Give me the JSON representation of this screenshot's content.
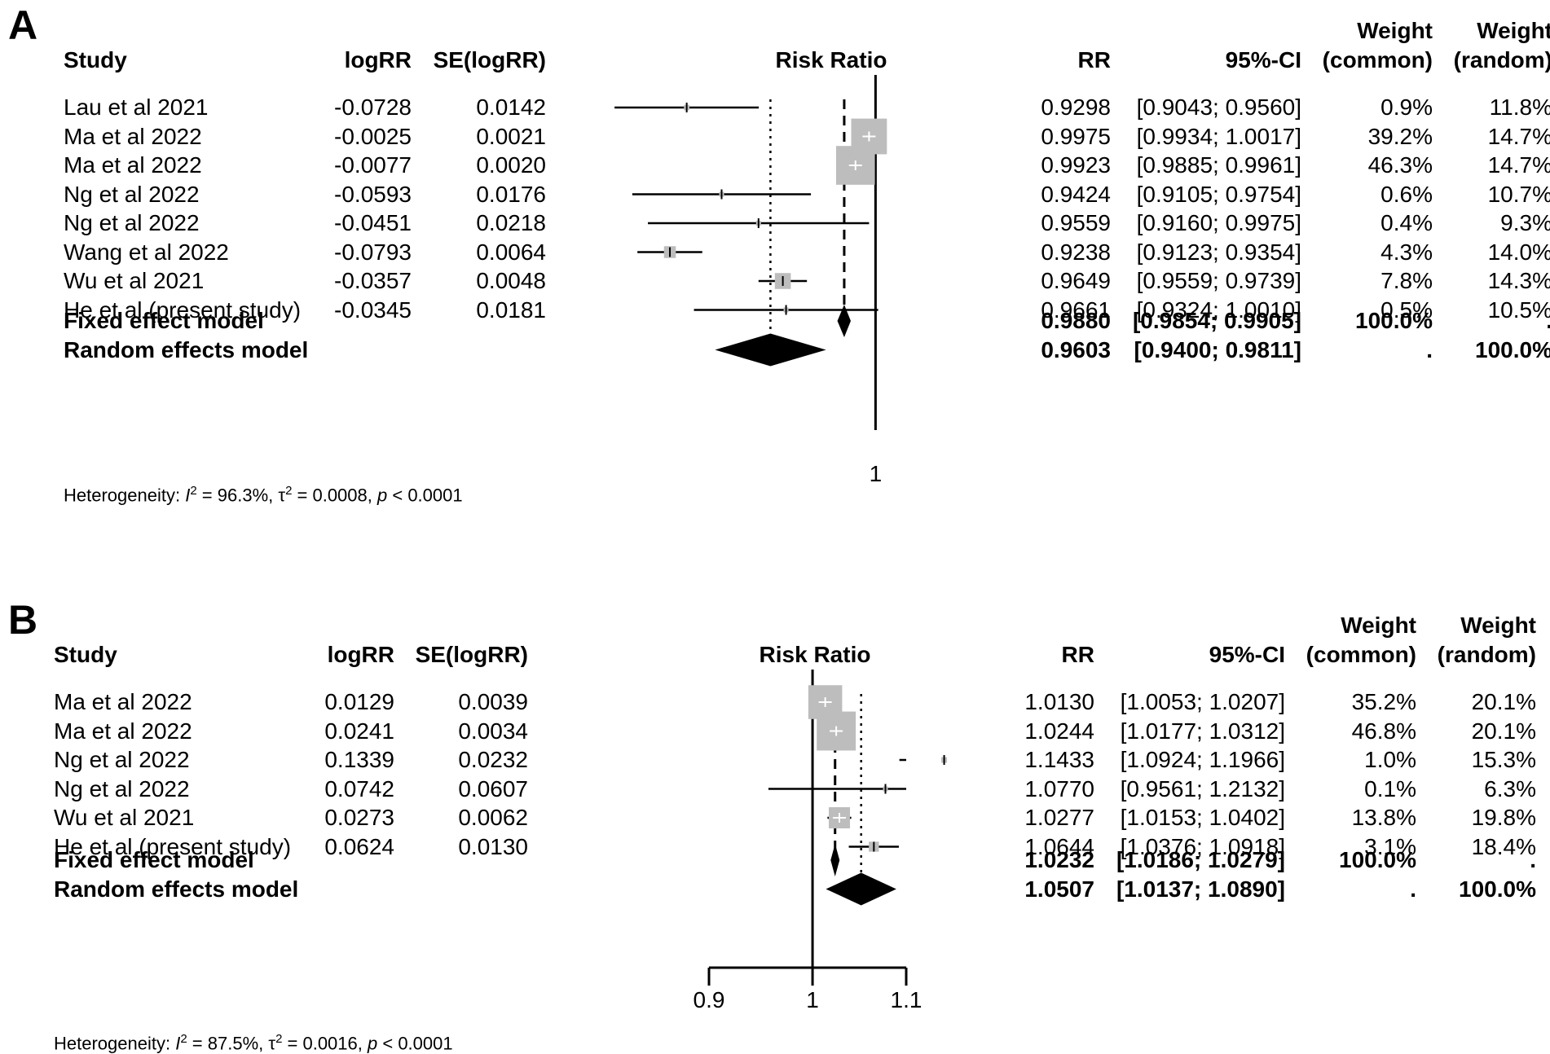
{
  "chart_data": [
    {
      "type": "forest",
      "panel_label": "A",
      "headers": {
        "study": "Study",
        "logrr": "logRR",
        "se": "SE(logRR)",
        "plot": "Risk Ratio",
        "rr": "RR",
        "ci": "95%-CI",
        "w_common_1": "Weight",
        "w_common_2": "(common)",
        "w_random_1": "Weight",
        "w_random_2": "(random)"
      },
      "rows": [
        {
          "study": "Lau et al 2021",
          "logrr": "-0.0728",
          "se": "0.0142",
          "rr": "0.9298",
          "ci": "[0.9043; 0.9560]",
          "w_common": "0.9%",
          "w_random": "11.8%",
          "est": 0.9298,
          "lo": 0.9043,
          "hi": 0.956,
          "wc": 0.9
        },
        {
          "study": "Ma et al 2022",
          "logrr": "-0.0025",
          "se": "0.0021",
          "rr": "0.9975",
          "ci": "[0.9934; 1.0017]",
          "w_common": "39.2%",
          "w_random": "14.7%",
          "est": 0.9975,
          "lo": 0.9934,
          "hi": 1.0017,
          "wc": 39.2
        },
        {
          "study": "Ma et al 2022",
          "logrr": "-0.0077",
          "se": "0.0020",
          "rr": "0.9923",
          "ci": "[0.9885; 0.9961]",
          "w_common": "46.3%",
          "w_random": "14.7%",
          "est": 0.9923,
          "lo": 0.9885,
          "hi": 0.9961,
          "wc": 46.3
        },
        {
          "study": "Ng et al 2022",
          "logrr": "-0.0593",
          "se": "0.0176",
          "rr": "0.9424",
          "ci": "[0.9105; 0.9754]",
          "w_common": "0.6%",
          "w_random": "10.7%",
          "est": 0.9424,
          "lo": 0.9105,
          "hi": 0.9754,
          "wc": 0.6
        },
        {
          "study": "Ng et al 2022",
          "logrr": "-0.0451",
          "se": "0.0218",
          "rr": "0.9559",
          "ci": "[0.9160; 0.9975]",
          "w_common": "0.4%",
          "w_random": "9.3%",
          "est": 0.9559,
          "lo": 0.916,
          "hi": 0.9975,
          "wc": 0.4
        },
        {
          "study": "Wang et al 2022",
          "logrr": "-0.0793",
          "se": "0.0064",
          "rr": "0.9238",
          "ci": "[0.9123; 0.9354]",
          "w_common": "4.3%",
          "w_random": "14.0%",
          "est": 0.9238,
          "lo": 0.9123,
          "hi": 0.9354,
          "wc": 4.3
        },
        {
          "study": "Wu et al 2021",
          "logrr": "-0.0357",
          "se": "0.0048",
          "rr": "0.9649",
          "ci": "[0.9559; 0.9739]",
          "w_common": "7.8%",
          "w_random": "14.3%",
          "est": 0.9649,
          "lo": 0.9559,
          "hi": 0.9739,
          "wc": 7.8
        },
        {
          "study": "He et al (present study)",
          "logrr": "-0.0345",
          "se": "0.0181",
          "rr": "0.9661",
          "ci": "[0.9324; 1.0010]",
          "w_common": "0.5%",
          "w_random": "10.5%",
          "est": 0.9661,
          "lo": 0.9324,
          "hi": 1.001,
          "wc": 0.5
        }
      ],
      "summary": [
        {
          "label": "Fixed effect model",
          "rr": "0.9880",
          "ci": "[0.9854; 0.9905]",
          "w_common": "100.0%",
          "w_random": ".",
          "est": 0.988,
          "lo": 0.9854,
          "hi": 0.9905
        },
        {
          "label": "Random effects model",
          "rr": "0.9603",
          "ci": "[0.9400; 0.9811]",
          "w_common": ".",
          "w_random": "100.0%",
          "est": 0.9603,
          "lo": 0.94,
          "hi": 0.9811
        }
      ],
      "x_scale": "log",
      "x_range": [
        0.9003,
        1.0065
      ],
      "null_line": 1,
      "ticks": [
        {
          "value": 1,
          "label": "1"
        }
      ],
      "axis_line": false,
      "heterogeneity": {
        "prefix": "Heterogeneity: ",
        "i2_symbol": "I",
        "sup": "2",
        "i2_value": " = 96.3%, ",
        "tau_symbol": "τ",
        "tau_value": " = 0.0008, ",
        "p_symbol": "p",
        "p_value": " < 0.0001"
      }
    },
    {
      "type": "forest",
      "panel_label": "B",
      "headers": {
        "study": "Study",
        "logrr": "logRR",
        "se": "SE(logRR)",
        "plot": "Risk Ratio",
        "rr": "RR",
        "ci": "95%-CI",
        "w_common_1": "Weight",
        "w_common_2": "(common)",
        "w_random_1": "Weight",
        "w_random_2": "(random)"
      },
      "rows": [
        {
          "study": "Ma et al 2022",
          "logrr": "0.0129",
          "se": "0.0039",
          "rr": "1.0130",
          "ci": "[1.0053; 1.0207]",
          "w_common": "35.2%",
          "w_random": "20.1%",
          "est": 1.013,
          "lo": 1.0053,
          "hi": 1.0207,
          "wc": 35.2
        },
        {
          "study": "Ma et al 2022",
          "logrr": "0.0241",
          "se": "0.0034",
          "rr": "1.0244",
          "ci": "[1.0177; 1.0312]",
          "w_common": "46.8%",
          "w_random": "20.1%",
          "est": 1.0244,
          "lo": 1.0177,
          "hi": 1.0312,
          "wc": 46.8
        },
        {
          "study": "Ng et al 2022",
          "logrr": "0.1339",
          "se": "0.0232",
          "rr": "1.1433",
          "ci": "[1.0924; 1.1966]",
          "w_common": "1.0%",
          "w_random": "15.3%",
          "est": 1.1433,
          "lo": 1.0924,
          "hi": 1.1966,
          "wc": 1.0
        },
        {
          "study": "Ng et al 2022",
          "logrr": "0.0742",
          "se": "0.0607",
          "rr": "1.0770",
          "ci": "[0.9561; 1.2132]",
          "w_common": "0.1%",
          "w_random": "6.3%",
          "est": 1.077,
          "lo": 0.9561,
          "hi": 1.2132,
          "wc": 0.1
        },
        {
          "study": "Wu et al 2021",
          "logrr": "0.0273",
          "se": "0.0062",
          "rr": "1.0277",
          "ci": "[1.0153; 1.0402]",
          "w_common": "13.8%",
          "w_random": "19.8%",
          "est": 1.0277,
          "lo": 1.0153,
          "hi": 1.0402,
          "wc": 13.8
        },
        {
          "study": "He et al (present study)",
          "logrr": "0.0624",
          "se": "0.0130",
          "rr": "1.0644",
          "ci": "[1.0376; 1.0918]",
          "w_common": "3.1%",
          "w_random": "18.4%",
          "est": 1.0644,
          "lo": 1.0376,
          "hi": 1.0918,
          "wc": 3.1
        }
      ],
      "summary": [
        {
          "label": "Fixed effect model",
          "rr": "1.0232",
          "ci": "[1.0186; 1.0279]",
          "w_common": "100.0%",
          "w_random": ".",
          "est": 1.0232,
          "lo": 1.0186,
          "hi": 1.0279
        },
        {
          "label": "Random effects model",
          "rr": "1.0507",
          "ci": "[1.0137; 1.0890]",
          "w_common": ".",
          "w_random": "100.0%",
          "est": 1.0507,
          "lo": 1.0137,
          "hi": 1.089
        }
      ],
      "x_scale": "log",
      "x_range": [
        0.9,
        1.1
      ],
      "null_line": 1,
      "ticks": [
        {
          "value": 0.9,
          "label": "0.9"
        },
        {
          "value": 1,
          "label": "1"
        },
        {
          "value": 1.1,
          "label": "1.1"
        }
      ],
      "axis_line": true,
      "heterogeneity": {
        "prefix": "Heterogeneity: ",
        "i2_symbol": "I",
        "sup": "2",
        "i2_value": " = 87.5%, ",
        "tau_symbol": "τ",
        "tau_value": " = 0.0016, ",
        "p_symbol": "p",
        "p_value": " < 0.0001"
      }
    }
  ]
}
